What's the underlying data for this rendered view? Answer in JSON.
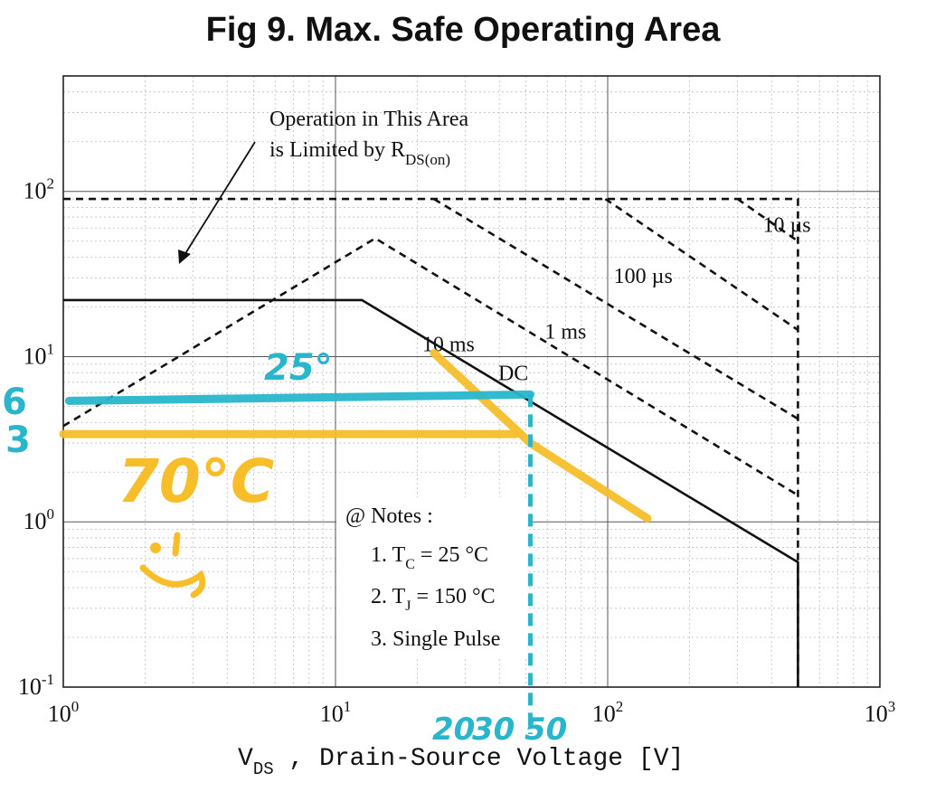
{
  "chart_data": {
    "type": "line",
    "title": "Fig 9.  Max. Safe Operating Area",
    "xscale": "log",
    "yscale": "log",
    "xlim": [
      1,
      1000
    ],
    "ylim": [
      0.1,
      500
    ],
    "grid": true,
    "xlabel": {
      "main": "V",
      "sub": "DS",
      "rest": " , Drain-Source Voltage  [V]"
    },
    "xticks": [
      {
        "value": 1,
        "base": "10",
        "exp": "0"
      },
      {
        "value": 10,
        "base": "10",
        "exp": "1"
      },
      {
        "value": 100,
        "base": "10",
        "exp": "2"
      },
      {
        "value": 1000,
        "base": "10",
        "exp": "3"
      }
    ],
    "yticks": [
      {
        "value": 0.1,
        "base": "10",
        "exp": "-1"
      },
      {
        "value": 1,
        "base": "10",
        "exp": "0"
      },
      {
        "value": 10,
        "base": "10",
        "exp": "1"
      },
      {
        "value": 100,
        "base": "10",
        "exp": "2"
      }
    ],
    "series": [
      {
        "name": "DC",
        "style": "solid",
        "points": [
          [
            1,
            22
          ],
          [
            12.5,
            22
          ],
          [
            500,
            0.57
          ],
          [
            500,
            0.1
          ]
        ]
      },
      {
        "name": "10 ms",
        "style": "dashed",
        "points": [
          [
            1,
            3.8
          ],
          [
            14,
            52
          ],
          [
            500,
            1.45
          ]
        ]
      },
      {
        "name": "1 ms",
        "style": "dashed",
        "points": [
          [
            23,
            90
          ],
          [
            500,
            4.2
          ]
        ]
      },
      {
        "name": "100 µs",
        "style": "dashed",
        "points": [
          [
            98,
            90
          ],
          [
            500,
            14.5
          ]
        ]
      },
      {
        "name": "10 µs",
        "style": "dashed",
        "points": [
          [
            300,
            90
          ],
          [
            500,
            50
          ]
        ]
      },
      {
        "name": "",
        "style": "dashed",
        "points": [
          [
            1,
            90
          ],
          [
            500,
            90
          ],
          [
            500,
            0.1
          ]
        ]
      }
    ],
    "series_labels": [
      {
        "text": "DC",
        "x": 45,
        "y": 7.2
      },
      {
        "text": "10 ms",
        "x": 26,
        "y": 10.8
      },
      {
        "text": "1 ms",
        "x": 70,
        "y": 12.9
      },
      {
        "text": "100 µs",
        "x": 135,
        "y": 28
      },
      {
        "text": "10 µs",
        "x": 455,
        "y": 57
      }
    ],
    "annotations": {
      "rds_line1": "Operation in This Area",
      "rds_line2": "is Limited by R",
      "rds_sub": "DS(on)",
      "notes_title": "@ Notes :",
      "note1_prefix": "1. T",
      "note1_sub": "C",
      "note1_suffix": " = 25 °C",
      "note2_prefix": "2. T",
      "note2_sub": "J",
      "note2_suffix": " = 150 °C",
      "note3": "3. Single Pulse"
    },
    "handwritten": {
      "cyan_color": "#29b6cc",
      "yellow_color": "#f7be2a",
      "cyan_label": "25°",
      "yellow_label": "70°C",
      "left_cyan_top": "6",
      "left_cyan_bottom": "3",
      "bottom_labels": [
        "20",
        "30",
        "50"
      ],
      "cyan_line": [
        [
          1.05,
          5.4
        ],
        [
          52,
          5.9
        ]
      ],
      "cyan_vertical_x": 52,
      "yellow_line": [
        [
          1.0,
          3.4
        ],
        [
          46,
          3.4
        ]
      ],
      "yellow_curve": [
        [
          23,
          10.5
        ],
        [
          52,
          3.0
        ],
        [
          140,
          1.05
        ]
      ]
    }
  }
}
